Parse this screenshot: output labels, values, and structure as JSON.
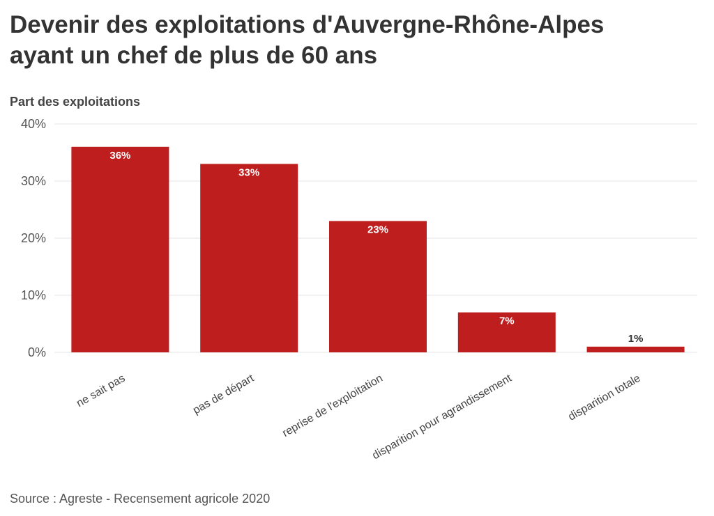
{
  "title_lines": [
    "Devenir des exploitations d'Auvergne-Rhône-Alpes",
    "ayant un chef de plus de 60 ans"
  ],
  "source": "Source : Agreste - Recensement agricole 2020",
  "chart_data": {
    "type": "bar",
    "title": "Devenir des exploitations d'Auvergne-Rhône-Alpes ayant un chef de plus de 60 ans",
    "xlabel": "",
    "ylabel": "Part des exploitations",
    "categories": [
      "ne sait pas",
      "pas de départ",
      "reprise de l'exploitation",
      "disparition pour agrandissement",
      "disparition totale"
    ],
    "values": [
      36,
      33,
      23,
      7,
      1
    ],
    "value_labels": [
      "36%",
      "33%",
      "23%",
      "7%",
      "1%"
    ],
    "ylim": [
      0,
      40
    ],
    "yticks": [
      0,
      10,
      20,
      30,
      40
    ],
    "ytick_labels": [
      "0%",
      "10%",
      "20%",
      "30%",
      "40%"
    ],
    "grid": true,
    "bar_color": "#bf1e1e",
    "grid_color": "#e6e6e6"
  }
}
